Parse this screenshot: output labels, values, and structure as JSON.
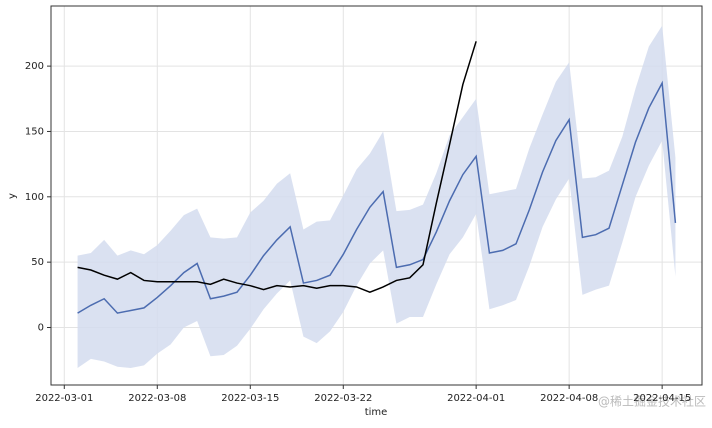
{
  "chart_data": {
    "type": "line",
    "x_label": "time",
    "y_label": "y",
    "x": [
      "2022-03-02",
      "2022-03-03",
      "2022-03-04",
      "2022-03-05",
      "2022-03-06",
      "2022-03-07",
      "2022-03-08",
      "2022-03-09",
      "2022-03-10",
      "2022-03-11",
      "2022-03-12",
      "2022-03-13",
      "2022-03-14",
      "2022-03-15",
      "2022-03-16",
      "2022-03-17",
      "2022-03-18",
      "2022-03-19",
      "2022-03-20",
      "2022-03-21",
      "2022-03-22",
      "2022-03-23",
      "2022-03-24",
      "2022-03-25",
      "2022-03-26",
      "2022-03-27",
      "2022-03-28",
      "2022-03-29",
      "2022-03-30",
      "2022-03-31",
      "2022-04-01",
      "2022-04-02",
      "2022-04-03",
      "2022-04-04",
      "2022-04-05",
      "2022-04-06",
      "2022-04-07",
      "2022-04-08",
      "2022-04-09",
      "2022-04-10",
      "2022-04-11",
      "2022-04-12",
      "2022-04-13",
      "2022-04-14",
      "2022-04-15",
      "2022-04-16"
    ],
    "band": {
      "color": "#d3dcee",
      "upper": [
        55,
        57,
        67,
        55,
        59,
        56,
        63,
        74,
        86,
        91,
        69,
        68,
        69,
        88,
        97,
        110,
        118,
        75,
        81,
        82,
        101,
        121,
        133,
        150,
        89,
        90,
        94,
        118,
        147,
        161,
        175,
        102,
        104,
        106,
        137,
        163,
        188,
        203,
        114,
        115,
        120,
        146,
        183,
        215,
        231,
        130
      ],
      "lower": [
        -31,
        -24,
        -26,
        -30,
        -31,
        -29,
        -20,
        -13,
        0,
        5,
        -22,
        -21,
        -14,
        -1,
        14,
        26,
        36,
        -7,
        -12,
        -3,
        12,
        32,
        49,
        59,
        3,
        8,
        8,
        33,
        56,
        69,
        87,
        14,
        17,
        21,
        47,
        77,
        98,
        114,
        25,
        29,
        32,
        65,
        100,
        124,
        143,
        39
      ]
    },
    "series": [
      {
        "color": "#4c6cb0",
        "values": [
          11,
          17,
          22,
          11,
          13,
          15,
          23,
          32,
          42,
          49,
          22,
          24,
          27,
          40,
          55,
          67,
          77,
          34,
          36,
          40,
          56,
          75,
          92,
          104,
          46,
          48,
          52,
          73,
          97,
          117,
          131,
          57,
          59,
          64,
          90,
          119,
          143,
          159,
          69,
          71,
          76,
          109,
          142,
          168,
          187,
          80
        ]
      },
      {
        "color": "#000000",
        "values": [
          46,
          44,
          40,
          37,
          42,
          36,
          35,
          35,
          35,
          35,
          33,
          37,
          34,
          32,
          29,
          32,
          31,
          32,
          30,
          32,
          32,
          31,
          27,
          31,
          36,
          38,
          48,
          95,
          140,
          186,
          219,
          null,
          null,
          null,
          null,
          null,
          null,
          null,
          null,
          null,
          null,
          null,
          null,
          null,
          null,
          null
        ]
      }
    ],
    "xlim": [
      "2022-02-28",
      "2022-04-18"
    ],
    "xticks": [
      "2022-03-01",
      "2022-03-08",
      "2022-03-15",
      "2022-03-22",
      "2022-04-01",
      "2022-04-08",
      "2022-04-15"
    ],
    "ylim": [
      -44,
      246
    ],
    "yticks": [
      0,
      50,
      100,
      150,
      200
    ],
    "grid": true,
    "watermark": "@稀土掘金技术社区"
  }
}
